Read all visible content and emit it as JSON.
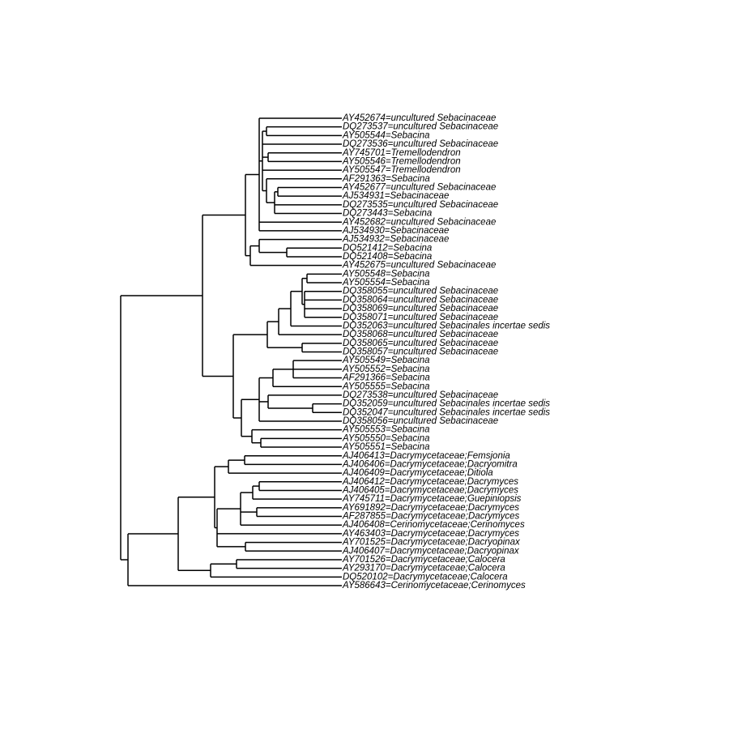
{
  "leaves": [
    "AY452674=uncultured Sebacinaceae",
    "DQ273537=uncultured Sebacinaceae",
    "AY505544=Sebacina",
    "DQ273536=uncultured Sebacinaceae",
    "AY745701=Tremellodendron",
    "AY505546=Tremellodendron",
    "AY505547=Tremellodendron",
    "AF291363=Sebacina",
    "AY452677=uncultured Sebacinaceae",
    "AJ534931=Sebacinaceae",
    "DQ273535=uncultured Sebacinaceae",
    "DQ273443=Sebacina",
    "AY452682=uncultured Sebacinaceae",
    "AJ534930=Sebacinaceae",
    "AJ534932=Sebacinaceae",
    "DQ521412=Sebacina",
    "DQ521408=Sebacina",
    "AY452675=uncultured Sebacinaceae",
    "AY505548=Sebacina",
    "AY505554=Sebacina",
    "DQ358055=uncultured Sebacinaceae",
    "DQ358064=uncultured Sebacinaceae",
    "DQ358069=uncultured Sebacinaceae",
    "DQ358071=uncultured Sebacinaceae",
    "DQ352063=uncultured Sebacinales incertae sedis",
    "DQ358068=uncultured Sebacinaceae",
    "DQ358065=uncultured Sebacinaceae",
    "DQ358057=uncultured Sebacinaceae",
    "AY505549=Sebacina",
    "AY505552=Sebacina",
    "AF291366=Sebacina",
    "AY505555=Sebacina",
    "DQ273538=uncultured Sebacinaceae",
    "DQ352059=uncultured Sebacinales incertae sedis",
    "DQ352047=uncultured Sebacinales incertae sedis",
    "DQ358056=uncultured Sebacinaceae",
    "AY505553=Sebacina",
    "AY505550=Sebacina",
    "AY505551=Sebacina",
    "AJ406413=Dacrymycetaceae;Femsjonia",
    "AJ406406=Dacrymycetaceae;Dacryomitra",
    "AJ406409=Dacrymycetaceae;Ditiola",
    "AJ406412=Dacrymycetaceae;Dacrymyces",
    "AJ406405=Dacrymycetaceae;Dacrymyces",
    "AY745711=Dacrymycetaceae;Guepiniopsis",
    "AY691892=Dacrymycetaceae;Dacrymyces",
    "AF287855=Dacrymycetaceae;Dacrymyces",
    "AJ406408=Cerinomycetaceae;Cerinomyces",
    "AY463403=Dacrymycetaceae;Dacrymyces",
    "AY701525=Dacrymycetaceae;Dacryopinax",
    "AJ406407=Dacrymycetaceae;Dacryopinax",
    "AY701526=Dacrymycetaceae;Calocera",
    "AY293170=Dacrymycetaceae;Calocera",
    "DQ520102=Dacrymycetaceae;Calocera",
    "AY586643=Cerinomycetaceae;Cerinomyces"
  ]
}
